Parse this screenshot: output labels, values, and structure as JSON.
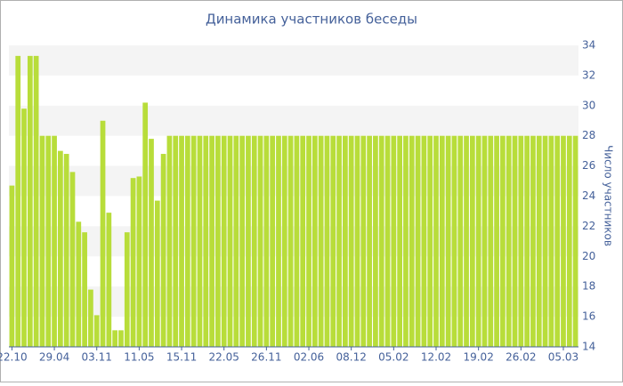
{
  "chart_data": {
    "type": "bar",
    "title": "Динамика участников беседы",
    "y_label": "Число участников",
    "categories": [
      "22.10",
      null,
      null,
      null,
      null,
      null,
      null,
      "29.04",
      null,
      null,
      null,
      null,
      null,
      null,
      "03.11",
      null,
      null,
      null,
      null,
      null,
      null,
      "11.05",
      null,
      null,
      null,
      null,
      null,
      null,
      "15.11",
      null,
      null,
      null,
      null,
      null,
      null,
      "22.05",
      null,
      null,
      null,
      null,
      null,
      null,
      "26.11",
      null,
      null,
      null,
      null,
      null,
      null,
      "02.06",
      null,
      null,
      null,
      null,
      null,
      null,
      "08.12",
      null,
      null,
      null,
      null,
      null,
      null,
      "05.02",
      null,
      null,
      null,
      null,
      null,
      null,
      "12.02",
      null,
      null,
      null,
      null,
      null,
      null,
      "19.02",
      null,
      null,
      null,
      null,
      null,
      null,
      "26.02",
      null,
      null,
      null,
      null,
      null,
      null,
      "05.03",
      null,
      null
    ],
    "values": [
      24.7,
      33.3,
      29.8,
      33.3,
      33.3,
      28,
      28,
      28,
      27,
      26.8,
      25.6,
      22.3,
      21.6,
      17.8,
      16.1,
      29,
      22.9,
      15.1,
      15.1,
      21.6,
      25.2,
      25.3,
      30.2,
      27.8,
      23.7,
      26.8,
      28,
      28,
      28,
      28,
      28,
      28,
      28,
      28,
      28,
      28,
      28,
      28,
      28,
      28,
      28,
      28,
      28,
      28,
      28,
      28,
      28,
      28,
      28,
      28,
      28,
      28,
      28,
      28,
      28,
      28,
      28,
      28,
      28,
      28,
      28,
      28,
      28,
      28,
      28,
      28,
      28,
      28,
      28,
      28,
      28,
      28,
      28,
      28,
      28,
      28,
      28,
      28,
      28,
      28,
      28,
      28,
      28,
      28,
      28,
      28,
      28,
      28,
      28,
      28,
      28,
      28,
      28,
      28
    ],
    "color": "#b8dd3a",
    "ylim": [
      14,
      34
    ],
    "yticks": [
      14,
      16,
      18,
      20,
      22,
      24,
      26,
      28,
      30,
      32,
      34
    ],
    "grid": true
  }
}
